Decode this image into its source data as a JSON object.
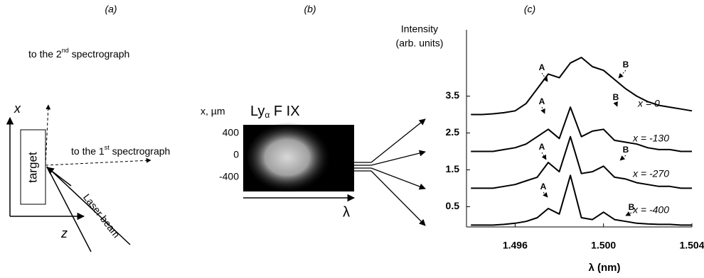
{
  "panel_a": {
    "label": "(a)",
    "second_spectrograph": {
      "before": "to the 2",
      "sup": "nd",
      "after": " spectrograph"
    },
    "first_spectrograph": {
      "before": "to the 1",
      "sup": "st",
      "after": " spectrograph"
    },
    "x_axis": "x",
    "z_axis": "z",
    "target": "target",
    "laser": "Laser beam"
  },
  "panel_b": {
    "label": "(b)",
    "axis_label": "x, µm",
    "title": {
      "before": "Ly",
      "sub": "α",
      "after": " F IX"
    },
    "ticks": [
      "400",
      "0",
      "-400"
    ],
    "x_label": "λ"
  },
  "chart_data": {
    "type": "line",
    "label": "(c)",
    "ylabel": [
      "Intensity",
      "(arb. units)"
    ],
    "xlabel": "λ (nm)",
    "x": [
      1.494,
      1.4945,
      1.495,
      1.4955,
      1.496,
      1.4965,
      1.497,
      1.4975,
      1.498,
      1.4985,
      1.499,
      1.4995,
      1.5,
      1.5005,
      1.501,
      1.5015,
      1.502,
      1.5025,
      1.503,
      1.5035,
      1.504
    ],
    "series": [
      {
        "name": "x = 0",
        "color": "#000000",
        "values": [
          3.0,
          3.0,
          3.02,
          3.05,
          3.1,
          3.3,
          3.7,
          4.1,
          4.0,
          4.4,
          4.55,
          4.3,
          4.2,
          3.95,
          3.7,
          3.5,
          3.35,
          3.25,
          3.2,
          3.15,
          3.1
        ]
      },
      {
        "name": "x = -130",
        "color": "#000000",
        "values": [
          2.0,
          2.0,
          2.0,
          2.05,
          2.1,
          2.2,
          2.4,
          2.6,
          2.35,
          3.2,
          2.4,
          2.55,
          2.6,
          2.3,
          2.25,
          2.2,
          2.1,
          2.05,
          2.05,
          2.0,
          2.0
        ]
      },
      {
        "name": "x = -270",
        "color": "#000000",
        "values": [
          1.0,
          1.0,
          1.0,
          1.05,
          1.1,
          1.2,
          1.3,
          1.7,
          1.45,
          2.4,
          1.4,
          1.45,
          1.6,
          1.3,
          1.25,
          1.15,
          1.1,
          1.05,
          1.05,
          1.0,
          1.0
        ]
      },
      {
        "name": "x = -400",
        "color": "#000000",
        "values": [
          0.0,
          0.0,
          0.0,
          0.02,
          0.05,
          0.1,
          0.2,
          0.45,
          0.3,
          1.35,
          0.2,
          0.15,
          0.35,
          0.15,
          0.1,
          0.05,
          0.03,
          0.02,
          0.02,
          0.0,
          0.0
        ]
      }
    ],
    "annotations": [
      "A",
      "B",
      "A",
      "B",
      "A",
      "B",
      "A",
      "B"
    ],
    "xlim": [
      1.4938,
      1.504
    ],
    "ylim": [
      -0.05,
      5.3
    ],
    "xticks": [
      1.496,
      {
        "value": 1.5,
        "label": "1.500"
      },
      1.504
    ],
    "yticks": [
      0.5,
      1.5,
      2.5,
      3.5
    ]
  }
}
